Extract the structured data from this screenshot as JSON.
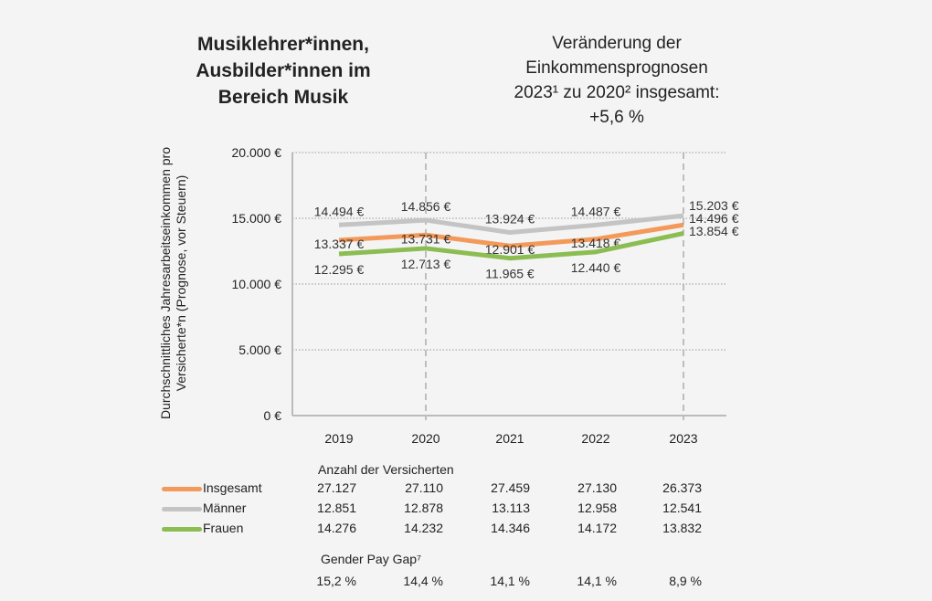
{
  "title": "Musiklehrer*innen, Ausbilder*innen im Bereich Musik",
  "subtitle": {
    "line1": "Veränderung der",
    "line2": "Einkommensprognosen",
    "line3": "2023¹ zu 2020² insgesamt:",
    "line4": "+5,6 %"
  },
  "chart_data": {
    "type": "line",
    "ylabel": "Durchschnittliches Jahresarbeitseinkommen pro Versicherte*n (Prognose, vor Steuern)",
    "ylim": [
      0,
      20000
    ],
    "yticks": [
      "0 €",
      "5.000 €",
      "10.000 €",
      "15.000 €",
      "20.000 €"
    ],
    "ytick_values": [
      0,
      5000,
      10000,
      15000,
      20000
    ],
    "categories": [
      "2019",
      "2020",
      "2021",
      "2022",
      "2023"
    ],
    "grid": "horizontal dotted",
    "series": [
      {
        "name": "Männer",
        "color": "#c4c4c4",
        "values": [
          14494,
          14856,
          13924,
          14487,
          15203
        ],
        "labels": [
          "14.494 €",
          "14.856 €",
          "13.924 €",
          "14.487 €",
          "15.203 €"
        ]
      },
      {
        "name": "Insgesamt",
        "color": "#f39a5a",
        "values": [
          13337,
          13731,
          12901,
          13418,
          14496
        ],
        "labels": [
          "13.337 €",
          "13.731 €",
          "12.901 €",
          "13.418 €",
          "14.496 €"
        ]
      },
      {
        "name": "Frauen",
        "color": "#8cbd52",
        "values": [
          12295,
          12713,
          11965,
          12440,
          13854
        ],
        "labels": [
          "12.295 €",
          "12.713 €",
          "11.965 €",
          "12.440 €",
          "13.854 €"
        ]
      }
    ]
  },
  "table": {
    "header": "Anzahl der Versicherten",
    "rows": [
      {
        "label": "Insgesamt",
        "color": "#f39a5a",
        "values": [
          "27.127",
          "27.110",
          "27.459",
          "27.130",
          "26.373"
        ]
      },
      {
        "label": "Männer",
        "color": "#c4c4c4",
        "values": [
          "12.851",
          "12.878",
          "13.113",
          "12.958",
          "12.541"
        ]
      },
      {
        "label": "Frauen",
        "color": "#8cbd52",
        "values": [
          "14.276",
          "14.232",
          "14.346",
          "14.172",
          "13.832"
        ]
      }
    ],
    "gap_header": "Gender Pay Gap⁷",
    "gap_values": [
      "15,2 %",
      "14,4 %",
      "14,1 %",
      "14,1 %",
      "8,9 %"
    ]
  }
}
